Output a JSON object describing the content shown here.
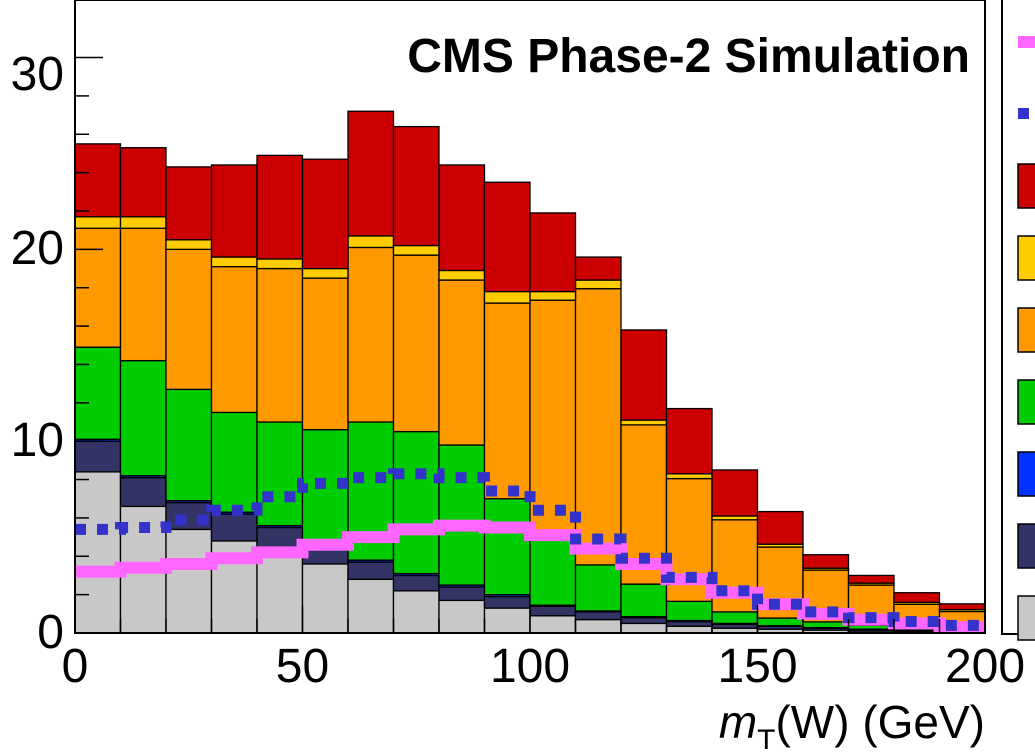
{
  "chart_data": {
    "type": "bar",
    "stacked": true,
    "title": "CMS Phase-2 Simulation",
    "xlabel_main": "m",
    "xlabel_sub": "T",
    "xlabel_rest": "(W) (GeV)",
    "ylabel": "",
    "xlim": [
      0,
      200
    ],
    "ylim": [
      0,
      33
    ],
    "xticks": [
      "0",
      "50",
      "100",
      "150",
      "200"
    ],
    "yticks": [
      "0",
      "10",
      "20",
      "30"
    ],
    "bin_width": 10,
    "bins_low_edge": [
      0,
      10,
      20,
      30,
      40,
      50,
      60,
      70,
      80,
      90,
      100,
      110,
      120,
      130,
      140,
      150,
      160,
      170,
      180,
      190
    ],
    "grid": false,
    "legend_position": "right (cropped)",
    "stacked_series": [
      {
        "key": "gray",
        "color": "#c8c8c8",
        "values": [
          8.4,
          6.6,
          5.4,
          4.8,
          4.3,
          3.6,
          2.8,
          2.2,
          1.7,
          1.3,
          0.9,
          0.7,
          0.5,
          0.35,
          0.25,
          0.2,
          0.15,
          0.1,
          0.08,
          0.05
        ]
      },
      {
        "key": "navy",
        "color": "#333366",
        "values": [
          1.6,
          1.5,
          1.4,
          1.4,
          1.2,
          1.0,
          0.9,
          0.8,
          0.7,
          0.6,
          0.5,
          0.4,
          0.3,
          0.25,
          0.2,
          0.15,
          0.1,
          0.08,
          0.05,
          0.05
        ]
      },
      {
        "key": "blue",
        "color": "#0033ff",
        "values": [
          0.1,
          0.1,
          0.1,
          0.1,
          0.1,
          0.1,
          0.1,
          0.1,
          0.1,
          0.1,
          0.05,
          0.05,
          0.05,
          0.05,
          0.05,
          0.03,
          0.03,
          0.02,
          0.02,
          0.02
        ]
      },
      {
        "key": "green",
        "color": "#00cc00",
        "values": [
          4.8,
          6.0,
          5.8,
          5.2,
          5.4,
          5.9,
          7.2,
          7.4,
          7.3,
          5.0,
          3.5,
          2.4,
          1.7,
          1.0,
          0.6,
          0.4,
          0.3,
          0.2,
          0.15,
          0.1
        ]
      },
      {
        "key": "orange",
        "color": "#ff9900",
        "values": [
          6.2,
          6.9,
          7.3,
          7.6,
          8.0,
          7.9,
          9.1,
          9.2,
          8.6,
          10.2,
          12.4,
          14.4,
          8.3,
          6.4,
          4.8,
          3.7,
          2.7,
          2.1,
          1.2,
          0.9
        ]
      },
      {
        "key": "yellow",
        "color": "#ffcc00",
        "values": [
          0.6,
          0.6,
          0.5,
          0.5,
          0.5,
          0.5,
          0.6,
          0.5,
          0.5,
          0.6,
          0.45,
          0.45,
          0.25,
          0.25,
          0.2,
          0.15,
          0.1,
          0.1,
          0.1,
          0.1
        ]
      },
      {
        "key": "red",
        "color": "#cc0000",
        "values": [
          3.8,
          3.6,
          3.8,
          4.8,
          5.4,
          5.7,
          6.5,
          6.2,
          5.5,
          5.7,
          4.1,
          1.2,
          4.7,
          3.4,
          2.4,
          1.7,
          0.7,
          0.4,
          0.5,
          0.3
        ]
      }
    ],
    "overlay_series": [
      {
        "key": "magenta",
        "style": "solid-step",
        "color": "#ff66ff",
        "values": [
          3.2,
          3.4,
          3.6,
          3.9,
          4.2,
          4.6,
          5.0,
          5.4,
          5.6,
          5.5,
          5.1,
          4.4,
          3.6,
          2.8,
          2.1,
          1.5,
          1.0,
          0.7,
          0.5,
          0.3
        ]
      },
      {
        "key": "blue-dots",
        "style": "dotted-step",
        "color": "#3333cc",
        "values": [
          5.4,
          5.5,
          5.9,
          6.4,
          7.1,
          7.8,
          8.1,
          8.3,
          8.1,
          7.4,
          6.4,
          4.9,
          3.9,
          2.9,
          2.2,
          1.5,
          1.1,
          0.8,
          0.6,
          0.4
        ]
      }
    ],
    "legend_markers": [
      {
        "kind": "line",
        "color": "#ff66ff"
      },
      {
        "kind": "dots",
        "color": "#3333cc"
      },
      {
        "kind": "box",
        "color": "#cc0000"
      },
      {
        "kind": "box",
        "color": "#ffcc00"
      },
      {
        "kind": "box",
        "color": "#ff9900"
      },
      {
        "kind": "box",
        "color": "#00cc00"
      },
      {
        "kind": "box",
        "color": "#0033ff"
      },
      {
        "kind": "box",
        "color": "#333366"
      },
      {
        "kind": "box",
        "color": "#c8c8c8"
      }
    ]
  }
}
